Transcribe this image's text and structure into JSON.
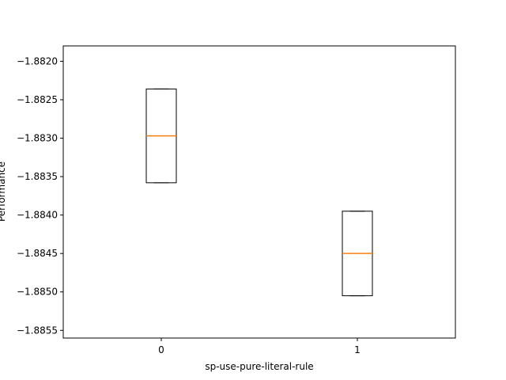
{
  "chart_data": {
    "type": "box",
    "xlabel": "sp-use-pure-literal-rule",
    "ylabel": "Performance",
    "categories": [
      "0",
      "1"
    ],
    "boxes": [
      {
        "category": "0",
        "q1": -1.88358,
        "median": -1.88297,
        "q3": -1.88236,
        "whisker_low": -1.88358,
        "whisker_high": -1.88236
      },
      {
        "category": "1",
        "q1": -1.88505,
        "median": -1.8845,
        "q3": -1.88395,
        "whisker_low": -1.88505,
        "whisker_high": -1.88395
      }
    ],
    "ylim": [
      -1.8856,
      -1.8818
    ],
    "yticks": [
      "−1.8855",
      "−1.8850",
      "−1.8845",
      "−1.8840",
      "−1.8835",
      "−1.8830",
      "−1.8825",
      "−1.8820"
    ],
    "ytick_values": [
      -1.8855,
      -1.885,
      -1.8845,
      -1.884,
      -1.8835,
      -1.883,
      -1.8825,
      -1.882
    ],
    "grid": false,
    "colors": {
      "box": "#000000",
      "median": "#ff7f0e"
    }
  }
}
